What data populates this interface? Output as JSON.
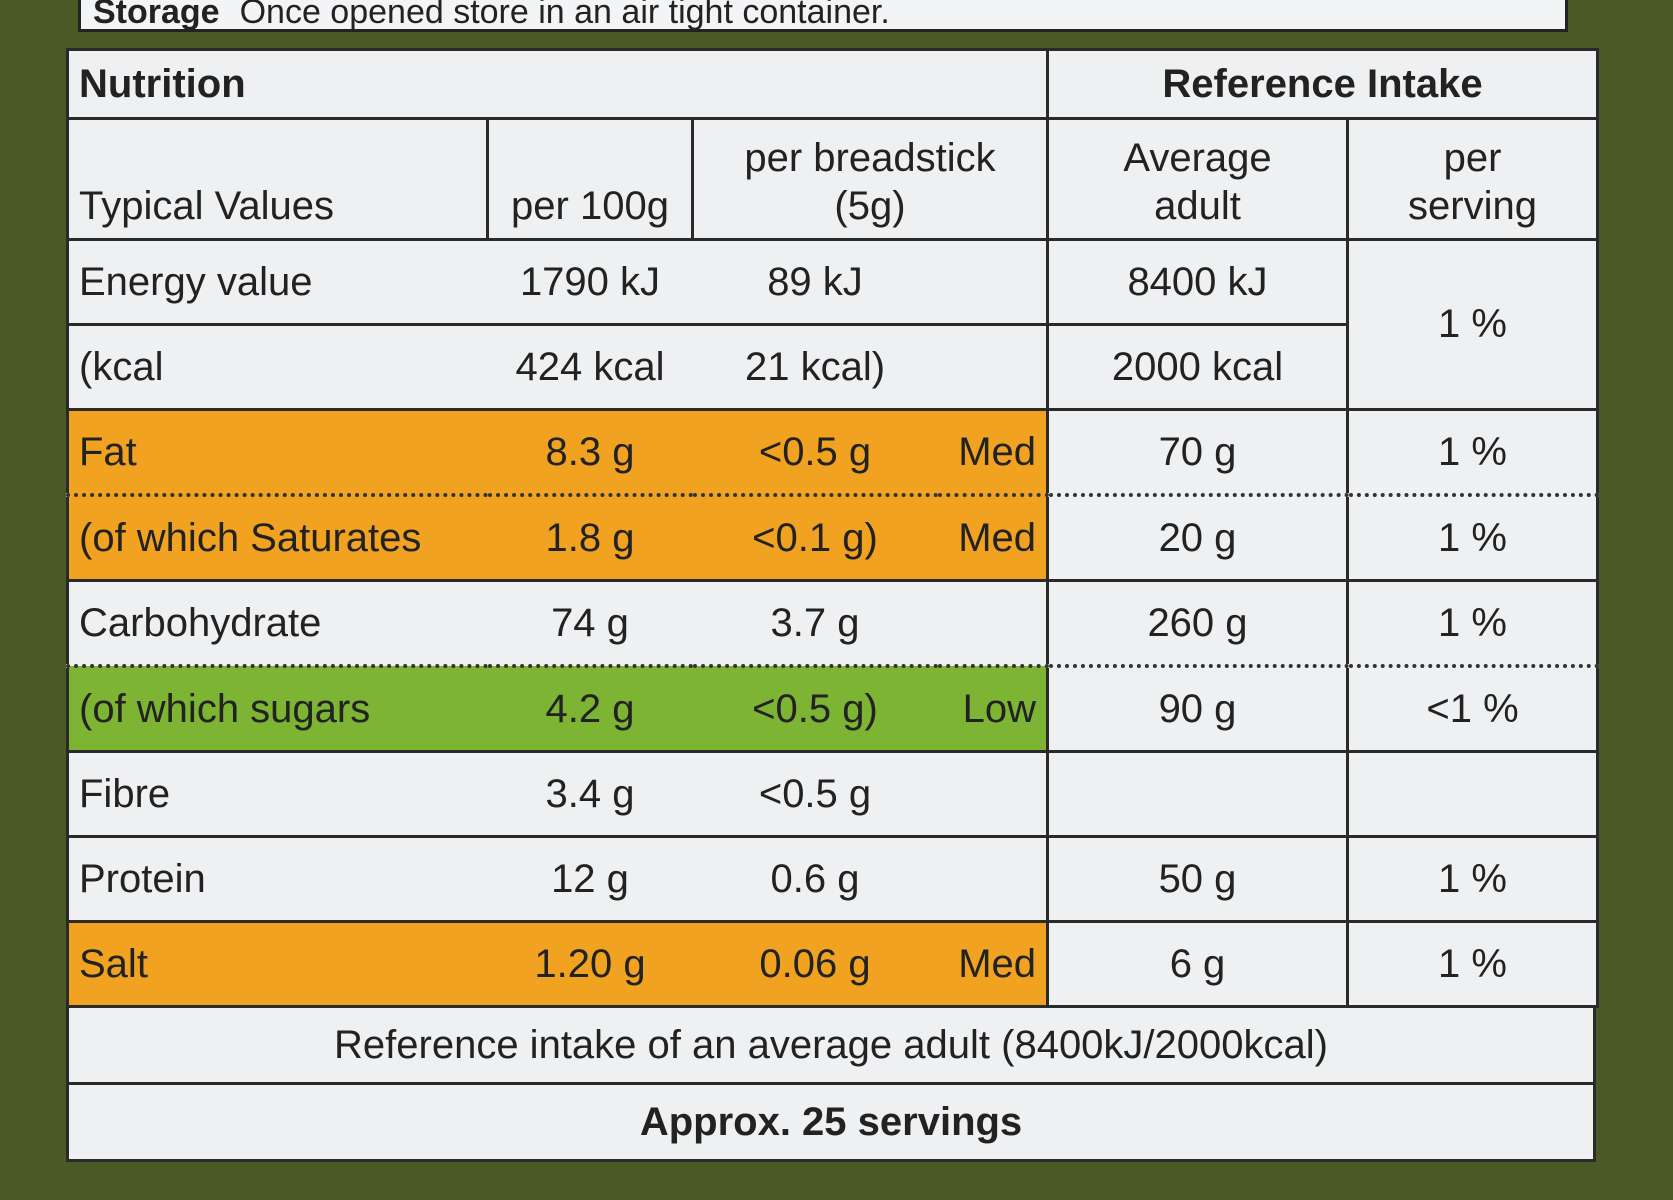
{
  "storage": {
    "label": "Storage",
    "text": "Once opened store in an air tight container."
  },
  "header": {
    "left": "Nutrition",
    "right": "Reference Intake"
  },
  "columns": [
    [
      "Typical Values"
    ],
    [
      "per 100g"
    ],
    [
      "per breadstick",
      "(5g)"
    ],
    [
      "Average",
      "adult"
    ],
    [
      "per",
      "serving"
    ]
  ],
  "rows": [
    {
      "cells": [
        "Energy value",
        "1790 kJ",
        "89 kJ",
        null,
        "8400 kJ",
        "1 %"
      ]
    },
    {
      "cells": [
        "(kcal",
        "424 kcal",
        "21 kcal)",
        null,
        "2000 kcal"
      ]
    },
    {
      "cells": [
        "Fat",
        "8.3 g",
        "<0.5 g",
        "Med",
        "70 g",
        "1 %"
      ],
      "color": "#f1a220"
    },
    {
      "cells": [
        "(of which Saturates",
        "1.8 g",
        "<0.1 g)",
        "Med",
        "20 g",
        "1 %"
      ],
      "color": "#f1a220",
      "dotted_above": true
    },
    {
      "cells": [
        "Carbohydrate",
        "74 g",
        "3.7 g",
        null,
        "260 g",
        "1 %"
      ]
    },
    {
      "cells": [
        "(of which sugars",
        "4.2 g",
        "<0.5 g)",
        "Low",
        "90 g",
        "<1 %"
      ],
      "color": "#7db433",
      "dotted_above": true
    },
    {
      "cells": [
        "Fibre",
        "3.4 g",
        "<0.5 g",
        null,
        null,
        null
      ]
    },
    {
      "cells": [
        "Protein",
        "12 g",
        "0.6 g",
        null,
        "50 g",
        "1 %"
      ]
    },
    {
      "cells": [
        "Salt",
        "1.20 g",
        "0.06 g",
        "Med",
        "6 g",
        "1 %"
      ],
      "color": "#f1a220"
    }
  ],
  "footer": {
    "note": "Reference intake of an average adult (8400kJ/2000kcal)",
    "servings": "Approx. 25 servings"
  }
}
